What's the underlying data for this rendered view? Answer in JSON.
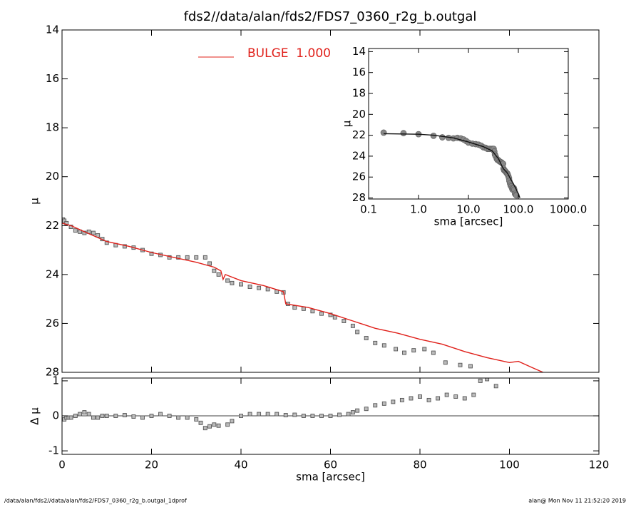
{
  "title": "fds2//data/alan/fds2/FDS7_0360_r2g_b.outgal",
  "footer_left": "/data/alan/fds2//data/alan/fds2/FDS7_0360_r2g_b.outgal_1dprof",
  "footer_right": "alan@  Mon Nov 11 21:52:20 2019",
  "chart_data": [
    {
      "type": "scatter",
      "ylabel": "μ",
      "xlim": [
        0,
        120
      ],
      "ylim": [
        28,
        14
      ],
      "xticks": [
        0,
        20,
        40,
        60,
        80,
        100,
        120
      ],
      "yticks": [
        14,
        16,
        18,
        20,
        22,
        24,
        26,
        28
      ],
      "series": [
        {
          "mode": "markers",
          "color": "#888888",
          "x": [
            0.2,
            0.5,
            1,
            2,
            3,
            4,
            5,
            6,
            7,
            8,
            9,
            10,
            12,
            14,
            16,
            18,
            20,
            22,
            24,
            26,
            28,
            30,
            32,
            33,
            34,
            35,
            37,
            38,
            40,
            42,
            44,
            46,
            48,
            49.5,
            50.5,
            52,
            54,
            56,
            58,
            60,
            61,
            63,
            65,
            66,
            68,
            70,
            72,
            74.6,
            76.5,
            78.6,
            81,
            83,
            85.7,
            89,
            91.3
          ],
          "values": [
            21.75,
            21.8,
            21.9,
            22.05,
            22.2,
            22.25,
            22.3,
            22.25,
            22.3,
            22.4,
            22.55,
            22.7,
            22.8,
            22.85,
            22.9,
            23.0,
            23.15,
            23.2,
            23.3,
            23.3,
            23.3,
            23.3,
            23.3,
            23.55,
            23.85,
            24.0,
            24.25,
            24.35,
            24.4,
            24.5,
            24.55,
            24.6,
            24.7,
            24.73,
            25.2,
            25.35,
            25.4,
            25.5,
            25.6,
            25.65,
            25.75,
            25.9,
            26.1,
            26.35,
            26.6,
            26.8,
            26.9,
            27.05,
            27.2,
            27.1,
            27.05,
            27.2,
            27.6,
            27.7,
            27.75
          ]
        },
        {
          "mode": "lines",
          "name": "BULGE  1.000",
          "color": "#e0201a",
          "x": [
            0,
            2,
            5,
            10,
            15,
            20,
            25,
            30,
            34,
            35.5,
            36,
            36.5,
            40,
            45,
            49.5,
            50,
            55,
            60,
            65,
            70,
            75,
            80,
            85,
            90,
            95,
            100,
            102,
            105,
            107.5
          ],
          "values": [
            21.9,
            22.0,
            22.25,
            22.65,
            22.85,
            23.1,
            23.3,
            23.5,
            23.7,
            23.85,
            24.2,
            24.0,
            24.25,
            24.45,
            24.7,
            25.2,
            25.35,
            25.6,
            25.9,
            26.2,
            26.4,
            26.65,
            26.85,
            27.15,
            27.4,
            27.6,
            27.55,
            27.8,
            28.0
          ]
        }
      ]
    },
    {
      "type": "scatter",
      "xlabel": "sma [arcsec]",
      "ylabel": "Δ μ",
      "xlim": [
        0,
        120
      ],
      "ylim": [
        -1.1,
        1.08
      ],
      "xticks": [
        0,
        20,
        40,
        60,
        80,
        100,
        120
      ],
      "yticks": [
        -1,
        0,
        1
      ],
      "reference_line": 0,
      "series": [
        {
          "mode": "markers",
          "color": "#888888",
          "x": [
            0.5,
            1,
            1.5,
            2,
            3,
            4,
            5,
            6,
            7,
            8,
            9,
            10,
            12,
            14,
            16,
            18,
            20,
            22,
            24,
            26,
            28,
            30,
            31,
            32,
            33,
            34,
            35,
            37,
            38,
            40,
            42,
            44,
            46,
            48,
            50,
            52,
            54,
            56,
            58,
            60,
            62,
            64,
            65,
            66,
            68,
            70,
            72,
            74,
            76,
            78,
            80,
            82,
            84,
            86,
            88,
            90,
            92,
            93.5,
            95,
            97
          ],
          "values": [
            -0.1,
            -0.05,
            -0.05,
            -0.05,
            0,
            0.05,
            0.1,
            0.05,
            -0.05,
            -0.05,
            0,
            0,
            0,
            0.02,
            -0.02,
            -0.05,
            0,
            0.05,
            0,
            -0.05,
            -0.05,
            -0.1,
            -0.2,
            -0.35,
            -0.3,
            -0.25,
            -0.28,
            -0.25,
            -0.15,
            0,
            0.05,
            0.05,
            0.05,
            0.05,
            0.02,
            0.03,
            0,
            0,
            0,
            0,
            0.03,
            0.05,
            0.1,
            0.15,
            0.2,
            0.3,
            0.35,
            0.4,
            0.45,
            0.5,
            0.55,
            0.45,
            0.5,
            0.6,
            0.55,
            0.5,
            0.6,
            1.0,
            1.05,
            0.85
          ]
        }
      ]
    },
    {
      "type": "scatter",
      "xlabel": "sma [arcsec]",
      "ylabel": "μ",
      "log_x": true,
      "xlim": [
        0.1,
        1000
      ],
      "ylim": [
        28.1,
        13.7
      ],
      "xticks": [
        0.1,
        {
          "value": 1,
          "label": "1.0"
        },
        {
          "value": 10,
          "label": "10.0"
        },
        {
          "value": 100,
          "label": "100.0"
        },
        {
          "value": 1000,
          "label": "1000.0"
        }
      ],
      "yticks": [
        14,
        16,
        18,
        20,
        22,
        24,
        26,
        28
      ],
      "series": [
        {
          "mode": "markers",
          "color": "#888888",
          "x": [
            0.2,
            0.5,
            1,
            2,
            3,
            4,
            5,
            6,
            7,
            8,
            9,
            10,
            12,
            14,
            16,
            18,
            20,
            22,
            24,
            26,
            28,
            30,
            32,
            33,
            34,
            35,
            37,
            38,
            40,
            42,
            44,
            46,
            48,
            49.5,
            50.5,
            52,
            54,
            56,
            58,
            60,
            61,
            63,
            65,
            66,
            68,
            70,
            72,
            74.6,
            76.5,
            78.6,
            81,
            83,
            85.7,
            89,
            91.3
          ],
          "values": [
            21.75,
            21.8,
            21.9,
            22.05,
            22.2,
            22.25,
            22.3,
            22.25,
            22.3,
            22.4,
            22.55,
            22.7,
            22.8,
            22.85,
            22.9,
            23.0,
            23.15,
            23.2,
            23.3,
            23.3,
            23.3,
            23.3,
            23.3,
            23.55,
            23.85,
            24.0,
            24.25,
            24.35,
            24.4,
            24.5,
            24.55,
            24.6,
            24.7,
            24.73,
            25.2,
            25.35,
            25.4,
            25.5,
            25.6,
            25.65,
            25.75,
            25.9,
            26.1,
            26.35,
            26.6,
            26.8,
            26.9,
            27.05,
            27.2,
            27.1,
            27.05,
            27.2,
            27.6,
            27.7,
            27.75
          ]
        },
        {
          "mode": "lines",
          "color": "#111111",
          "x": [
            0.2,
            1,
            2,
            5,
            10,
            20,
            30,
            40,
            50,
            60,
            70,
            80,
            90,
            100,
            107.5
          ],
          "values": [
            21.85,
            21.9,
            22.0,
            22.25,
            22.65,
            23.1,
            23.5,
            24.25,
            25.2,
            25.6,
            26.2,
            26.65,
            27.15,
            27.6,
            28.0
          ]
        }
      ]
    }
  ]
}
